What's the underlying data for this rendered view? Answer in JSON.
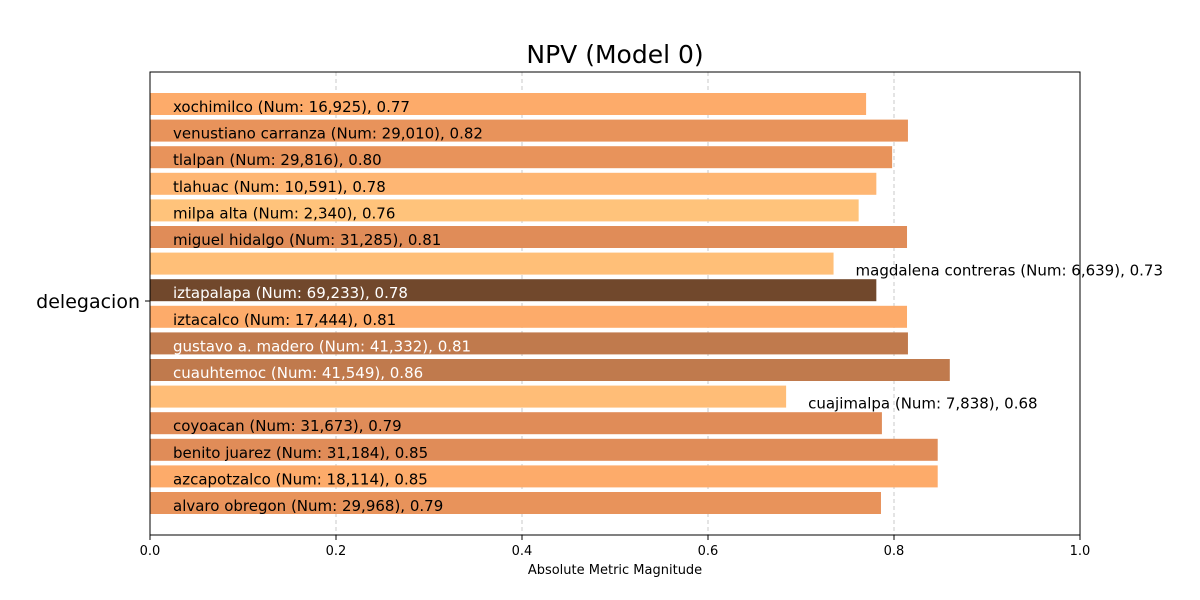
{
  "chart_data": {
    "type": "bar",
    "orientation": "horizontal",
    "title": "NPV (Model 0)",
    "xlabel": "Absolute Metric Magnitude",
    "ylabel": "delegacion",
    "xlim": [
      0.0,
      1.0
    ],
    "xticks": [
      "0.0",
      "0.2",
      "0.4",
      "0.6",
      "0.8",
      "1.0"
    ],
    "grid": "x-dashed",
    "bars": [
      {
        "name": "xochimilco",
        "num": "16,925",
        "value": 0.77,
        "label": "xochimilco (Num: 16,925), 0.77",
        "color": "#fdab6a",
        "label_color": "#000000",
        "label_inside": true
      },
      {
        "name": "venustiano carranza",
        "num": "29,010",
        "value": 0.815,
        "label": "venustiano carranza (Num: 29,010), 0.82",
        "color": "#e8935b",
        "label_color": "#000000",
        "label_inside": true
      },
      {
        "name": "tlalpan",
        "num": "29,816",
        "value": 0.798,
        "label": "tlalpan (Num: 29,816), 0.80",
        "color": "#e8935b",
        "label_color": "#000000",
        "label_inside": true
      },
      {
        "name": "tlahuac",
        "num": "10,591",
        "value": 0.781,
        "label": "tlahuac (Num: 10,591), 0.78",
        "color": "#feb673",
        "label_color": "#000000",
        "label_inside": true
      },
      {
        "name": "milpa alta",
        "num": "2,340",
        "value": 0.762,
        "label": "milpa alta (Num: 2,340), 0.76",
        "color": "#ffc37b",
        "label_color": "#000000",
        "label_inside": true
      },
      {
        "name": "miguel hidalgo",
        "num": "31,285",
        "value": 0.814,
        "label": "miguel hidalgo (Num: 31,285), 0.81",
        "color": "#e08c58",
        "label_color": "#000000",
        "label_inside": true
      },
      {
        "name": "magdalena contreras",
        "num": "6,639",
        "value": 0.735,
        "label": "magdalena contreras (Num: 6,639), 0.73",
        "color": "#ffbf78",
        "label_color": "#000000",
        "label_inside": false
      },
      {
        "name": "iztapalapa",
        "num": "69,233",
        "value": 0.781,
        "label": "iztapalapa (Num: 69,233), 0.78",
        "color": "#71482c",
        "label_color": "#ffffff",
        "label_inside": true
      },
      {
        "name": "iztacalco",
        "num": "17,444",
        "value": 0.814,
        "label": "iztacalco (Num: 17,444), 0.81",
        "color": "#fdab6a",
        "label_color": "#000000",
        "label_inside": true
      },
      {
        "name": "gustavo a. madero",
        "num": "41,332",
        "value": 0.815,
        "label": "gustavo a. madero (Num: 41,332), 0.81",
        "color": "#c07a4d",
        "label_color": "#ffffff",
        "label_inside": true
      },
      {
        "name": "cuauhtemoc",
        "num": "41,549",
        "value": 0.86,
        "label": "cuauhtemoc (Num: 41,549), 0.86",
        "color": "#c07a4d",
        "label_color": "#ffffff",
        "label_inside": true
      },
      {
        "name": "cuajimalpa",
        "num": "7,838",
        "value": 0.684,
        "label": "cuajimalpa (Num: 7,838), 0.68",
        "color": "#ffbd77",
        "label_color": "#000000",
        "label_inside": false
      },
      {
        "name": "coyoacan",
        "num": "31,673",
        "value": 0.787,
        "label": "coyoacan (Num: 31,673), 0.79",
        "color": "#e08c58",
        "label_color": "#000000",
        "label_inside": true
      },
      {
        "name": "benito juarez",
        "num": "31,184",
        "value": 0.847,
        "label": "benito juarez (Num: 31,184), 0.85",
        "color": "#e08c58",
        "label_color": "#000000",
        "label_inside": true
      },
      {
        "name": "azcapotzalco",
        "num": "18,114",
        "value": 0.847,
        "label": "azcapotzalco (Num: 18,114), 0.85",
        "color": "#fdab6a",
        "label_color": "#000000",
        "label_inside": true
      },
      {
        "name": "alvaro obregon",
        "num": "29,968",
        "value": 0.786,
        "label": "alvaro obregon (Num: 29,968), 0.79",
        "color": "#e8935b",
        "label_color": "#000000",
        "label_inside": true
      }
    ]
  }
}
